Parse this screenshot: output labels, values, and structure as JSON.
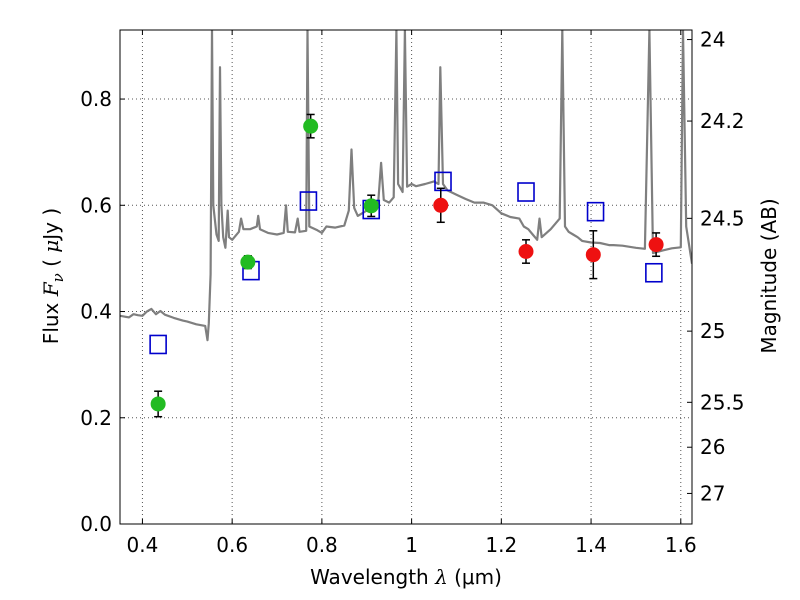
{
  "chart_data": {
    "type": "scatter",
    "title": "",
    "xlabel": "Wavelength  λ (μm)",
    "xlabel_parts": {
      "text": "Wavelength  ",
      "symbol": "λ",
      "unit": " (μm)"
    },
    "ylabel": "Flux  F_ν  ( μJy )",
    "ylabel_parts": {
      "text": "Flux  ",
      "symbol": "F",
      "subscript": "ν",
      "unit_open": "  ( ",
      "unit_mu": "μ",
      "unit_rest": "Jy )"
    },
    "y2label": "Magnitude (AB)",
    "xlim": [
      0.35,
      1.625
    ],
    "ylim": [
      0.0,
      0.93
    ],
    "grid": true,
    "x_ticks": [
      0.4,
      0.6,
      0.8,
      1.0,
      1.2,
      1.4,
      1.6
    ],
    "x_tick_labels": [
      "0.4",
      "0.6",
      "0.8",
      "1",
      "1.2",
      "1.4",
      "1.6"
    ],
    "y_ticks": [
      0.0,
      0.2,
      0.4,
      0.6,
      0.8
    ],
    "y_tick_labels": [
      "0.0",
      "0.2",
      "0.4",
      "0.6",
      "0.8"
    ],
    "y2_ticks": [
      24,
      24.2,
      24.5,
      25,
      25.5,
      26,
      27
    ],
    "y2_tick_labels": [
      "24",
      "24.2",
      "24.5",
      "25",
      "25.5",
      "26",
      "27"
    ],
    "colors": {
      "model": "#7f7f7f",
      "model_photometry": "#0000cc",
      "optical_points": "#22bb22",
      "nir_points": "#ee1111",
      "errorbar": "#000000",
      "grid": "#555555"
    },
    "series": [
      {
        "kind": "errorbar_points",
        "color_key": "optical_points",
        "points": [
          {
            "x": 0.435,
            "y": 0.226,
            "err": 0.024
          },
          {
            "x": 0.635,
            "y": 0.493,
            "err": 0.012
          },
          {
            "x": 0.775,
            "y": 0.749,
            "err": 0.022
          },
          {
            "x": 0.91,
            "y": 0.599,
            "err": 0.02
          }
        ]
      },
      {
        "kind": "errorbar_points",
        "color_key": "nir_points",
        "points": [
          {
            "x": 1.065,
            "y": 0.6,
            "err": 0.032
          },
          {
            "x": 1.255,
            "y": 0.513,
            "err": 0.022
          },
          {
            "x": 1.405,
            "y": 0.507,
            "err": 0.045
          },
          {
            "x": 1.545,
            "y": 0.526,
            "err": 0.022
          }
        ]
      },
      {
        "kind": "square_markers",
        "color_key": "model_photometry",
        "points": [
          {
            "x": 0.435,
            "y": 0.338
          },
          {
            "x": 0.642,
            "y": 0.477
          },
          {
            "x": 0.77,
            "y": 0.608
          },
          {
            "x": 0.91,
            "y": 0.592
          },
          {
            "x": 1.07,
            "y": 0.645
          },
          {
            "x": 1.255,
            "y": 0.625
          },
          {
            "x": 1.41,
            "y": 0.588
          },
          {
            "x": 1.54,
            "y": 0.473
          }
        ]
      },
      {
        "kind": "spectrum_line",
        "color_key": "model",
        "points": [
          [
            0.35,
            0.392
          ],
          [
            0.37,
            0.389
          ],
          [
            0.38,
            0.395
          ],
          [
            0.39,
            0.393
          ],
          [
            0.4,
            0.392
          ],
          [
            0.41,
            0.4
          ],
          [
            0.42,
            0.405
          ],
          [
            0.43,
            0.395
          ],
          [
            0.44,
            0.401
          ],
          [
            0.45,
            0.394
          ],
          [
            0.47,
            0.388
          ],
          [
            0.49,
            0.383
          ],
          [
            0.5,
            0.381
          ],
          [
            0.52,
            0.376
          ],
          [
            0.54,
            0.373
          ],
          [
            0.545,
            0.346
          ],
          [
            0.548,
            0.378
          ],
          [
            0.552,
            0.47
          ],
          [
            0.555,
            0.93
          ],
          [
            0.558,
            0.6
          ],
          [
            0.565,
            0.545
          ],
          [
            0.57,
            0.533
          ],
          [
            0.573,
            0.86
          ],
          [
            0.576,
            0.6
          ],
          [
            0.58,
            0.54
          ],
          [
            0.585,
            0.52
          ],
          [
            0.59,
            0.59
          ],
          [
            0.593,
            0.54
          ],
          [
            0.6,
            0.535
          ],
          [
            0.615,
            0.55
          ],
          [
            0.62,
            0.575
          ],
          [
            0.625,
            0.555
          ],
          [
            0.64,
            0.555
          ],
          [
            0.655,
            0.56
          ],
          [
            0.658,
            0.58
          ],
          [
            0.662,
            0.555
          ],
          [
            0.68,
            0.548
          ],
          [
            0.7,
            0.545
          ],
          [
            0.715,
            0.548
          ],
          [
            0.72,
            0.6
          ],
          [
            0.724,
            0.55
          ],
          [
            0.74,
            0.549
          ],
          [
            0.746,
            0.575
          ],
          [
            0.75,
            0.55
          ],
          [
            0.765,
            0.552
          ],
          [
            0.768,
            0.93
          ],
          [
            0.772,
            0.56
          ],
          [
            0.79,
            0.553
          ],
          [
            0.8,
            0.548
          ],
          [
            0.81,
            0.56
          ],
          [
            0.83,
            0.558
          ],
          [
            0.85,
            0.562
          ],
          [
            0.86,
            0.59
          ],
          [
            0.866,
            0.705
          ],
          [
            0.872,
            0.595
          ],
          [
            0.88,
            0.58
          ],
          [
            0.9,
            0.59
          ],
          [
            0.91,
            0.596
          ],
          [
            0.925,
            0.6
          ],
          [
            0.932,
            0.68
          ],
          [
            0.938,
            0.61
          ],
          [
            0.95,
            0.605
          ],
          [
            0.96,
            0.615
          ],
          [
            0.966,
            0.93
          ],
          [
            0.97,
            0.64
          ],
          [
            0.98,
            0.625
          ],
          [
            0.985,
            0.93
          ],
          [
            0.99,
            0.635
          ],
          [
            1.0,
            0.64
          ],
          [
            1.01,
            0.636
          ],
          [
            1.03,
            0.64
          ],
          [
            1.05,
            0.645
          ],
          [
            1.06,
            0.64
          ],
          [
            1.064,
            0.86
          ],
          [
            1.07,
            0.64
          ],
          [
            1.08,
            0.628
          ],
          [
            1.1,
            0.62
          ],
          [
            1.12,
            0.612
          ],
          [
            1.14,
            0.605
          ],
          [
            1.16,
            0.605
          ],
          [
            1.18,
            0.6
          ],
          [
            1.2,
            0.585
          ],
          [
            1.22,
            0.578
          ],
          [
            1.24,
            0.575
          ],
          [
            1.25,
            0.56
          ],
          [
            1.26,
            0.555
          ],
          [
            1.27,
            0.545
          ],
          [
            1.28,
            0.535
          ],
          [
            1.285,
            0.575
          ],
          [
            1.29,
            0.54
          ],
          [
            1.31,
            0.555
          ],
          [
            1.33,
            0.575
          ],
          [
            1.336,
            0.93
          ],
          [
            1.342,
            0.56
          ],
          [
            1.35,
            0.55
          ],
          [
            1.36,
            0.545
          ],
          [
            1.37,
            0.54
          ],
          [
            1.38,
            0.533
          ],
          [
            1.4,
            0.53
          ],
          [
            1.42,
            0.529
          ],
          [
            1.44,
            0.525
          ],
          [
            1.45,
            0.525
          ],
          [
            1.47,
            0.524
          ],
          [
            1.5,
            0.52
          ],
          [
            1.52,
            0.518
          ],
          [
            1.53,
            0.93
          ],
          [
            1.538,
            0.51
          ],
          [
            1.56,
            0.515
          ],
          [
            1.58,
            0.519
          ],
          [
            1.6,
            0.521
          ],
          [
            1.605,
            0.93
          ],
          [
            1.612,
            0.56
          ],
          [
            1.625,
            0.49
          ]
        ]
      }
    ]
  }
}
